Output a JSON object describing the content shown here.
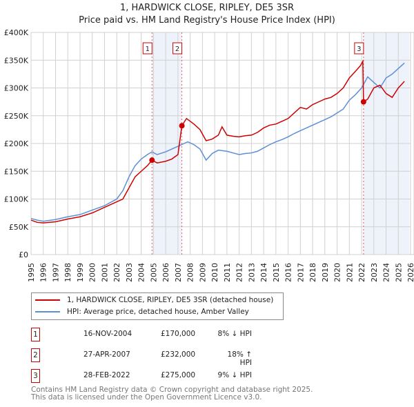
{
  "chart_data": {
    "type": "line",
    "title": "1, HARDWICK CLOSE, RIPLEY, DE5 3SR",
    "subtitle": "Price paid vs. HM Land Registry's House Price Index (HPI)",
    "xlim": [
      1995,
      2026
    ],
    "ylim": [
      0,
      400000
    ],
    "y_ticks": [
      {
        "v": 0,
        "label": "£0"
      },
      {
        "v": 50000,
        "label": "£50K"
      },
      {
        "v": 100000,
        "label": "£100K"
      },
      {
        "v": 150000,
        "label": "£150K"
      },
      {
        "v": 200000,
        "label": "£200K"
      },
      {
        "v": 250000,
        "label": "£250K"
      },
      {
        "v": 300000,
        "label": "£300K"
      },
      {
        "v": 350000,
        "label": "£350K"
      },
      {
        "v": 400000,
        "label": "£400K"
      }
    ],
    "x_ticks": [
      "1995",
      "1996",
      "1997",
      "1998",
      "1999",
      "2000",
      "2001",
      "2002",
      "2003",
      "2004",
      "2005",
      "2006",
      "2007",
      "2008",
      "2009",
      "2010",
      "2011",
      "2012",
      "2013",
      "2014",
      "2015",
      "2016",
      "2017",
      "2018",
      "2019",
      "2020",
      "2021",
      "2022",
      "2023",
      "2024",
      "2025",
      "2026"
    ],
    "grid": true,
    "series": [
      {
        "name": "1, HARDWICK CLOSE, RIPLEY, DE5 3SR (detached house)",
        "color": "#cc0000",
        "x": [
          1995,
          1995.5,
          1996,
          1997,
          1998,
          1999,
          2000,
          2001,
          2002,
          2002.5,
          2003,
          2003.5,
          2004,
          2004.5,
          2004.88,
          2005.3,
          2006,
          2006.5,
          2007.0,
          2007.32,
          2007.7,
          2008.3,
          2008.8,
          2009.3,
          2009.8,
          2010.3,
          2010.6,
          2011,
          2011.5,
          2012,
          2012.5,
          2013,
          2013.5,
          2014,
          2014.5,
          2015,
          2015.5,
          2016,
          2016.5,
          2017,
          2017.5,
          2018,
          2018.5,
          2019,
          2019.5,
          2020,
          2020.5,
          2021,
          2021.5,
          2021.9,
          2022.1,
          2022.16,
          2022.5,
          2023,
          2023.5,
          2024,
          2024.5,
          2025,
          2025.5
        ],
        "y": [
          62000,
          58000,
          57000,
          59000,
          64000,
          68000,
          75000,
          85000,
          95000,
          100000,
          120000,
          140000,
          150000,
          160000,
          170000,
          165000,
          168000,
          172000,
          180000,
          232000,
          245000,
          235000,
          225000,
          205000,
          208000,
          215000,
          230000,
          215000,
          213000,
          212000,
          214000,
          215000,
          220000,
          228000,
          233000,
          235000,
          240000,
          245000,
          255000,
          265000,
          262000,
          270000,
          275000,
          280000,
          283000,
          290000,
          300000,
          318000,
          330000,
          340000,
          348000,
          275000,
          280000,
          300000,
          305000,
          290000,
          283000,
          300000,
          312000
        ]
      },
      {
        "name": "HPI: Average price, detached house, Amber Valley",
        "color": "#5b8fd4",
        "x": [
          1995,
          1995.5,
          1996,
          1997,
          1998,
          1999,
          2000,
          2001,
          2002,
          2002.5,
          2003,
          2003.5,
          2004,
          2004.5,
          2004.88,
          2005.3,
          2006,
          2006.5,
          2007,
          2007.5,
          2007.8,
          2008.3,
          2008.8,
          2009.3,
          2009.8,
          2010.3,
          2011,
          2011.5,
          2012,
          2012.5,
          2013,
          2013.5,
          2014,
          2014.5,
          2015,
          2015.5,
          2016,
          2016.5,
          2017,
          2017.5,
          2018,
          2018.5,
          2019,
          2019.5,
          2020,
          2020.5,
          2021,
          2021.5,
          2022,
          2022.5,
          2023,
          2023.5,
          2024,
          2024.5,
          2025,
          2025.5
        ],
        "y": [
          65000,
          62000,
          60000,
          63000,
          68000,
          72000,
          80000,
          88000,
          100000,
          115000,
          140000,
          160000,
          172000,
          180000,
          185000,
          180000,
          185000,
          190000,
          195000,
          200000,
          203000,
          198000,
          190000,
          170000,
          182000,
          188000,
          186000,
          183000,
          180000,
          182000,
          183000,
          186000,
          192000,
          198000,
          203000,
          207000,
          212000,
          218000,
          223000,
          228000,
          233000,
          238000,
          243000,
          248000,
          255000,
          262000,
          278000,
          288000,
          300000,
          320000,
          310000,
          300000,
          318000,
          325000,
          335000,
          345000
        ]
      }
    ],
    "sales": [
      {
        "label": "1",
        "x": 2004.88,
        "price": 170000,
        "date": "16-NOV-2004",
        "price_text": "£170,000",
        "hpi": "8% ↓ HPI"
      },
      {
        "label": "2",
        "x": 2007.32,
        "price": 232000,
        "date": "27-APR-2007",
        "price_text": "£232,000",
        "hpi": "18% ↑ HPI"
      },
      {
        "label": "3",
        "x": 2022.16,
        "price": 275000,
        "date": "28-FEB-2022",
        "price_text": "£275,000",
        "hpi": "9% ↓ HPI"
      }
    ],
    "shaded_ranges": [
      [
        2004.88,
        2007.32
      ],
      [
        2022.16,
        2025.9
      ]
    ],
    "legend_placement": "bottom"
  },
  "footer": {
    "line1": "Contains HM Land Registry data © Crown copyright and database right 2025.",
    "line2": "This data is licensed under the Open Government Licence v3.0."
  }
}
